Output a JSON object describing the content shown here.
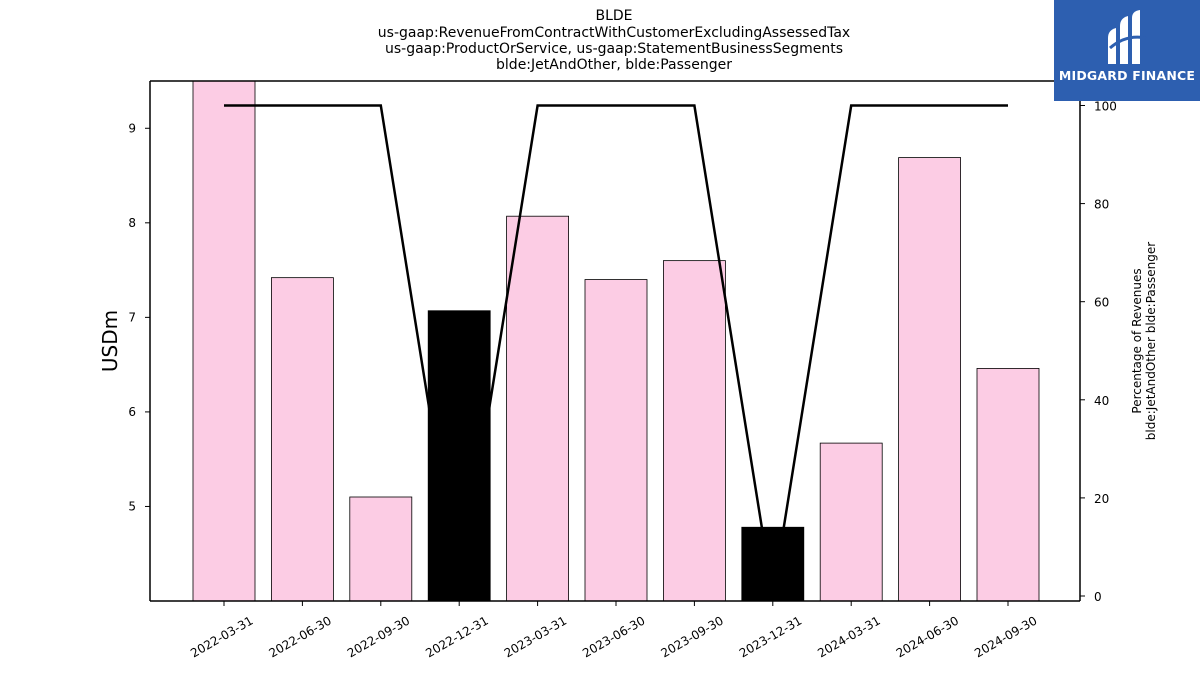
{
  "chart_data": {
    "type": "bar",
    "title_lines": [
      "BLDE",
      "us-gaap:RevenueFromContractWithCustomerExcludingAssessedTax",
      "us-gaap:ProductOrService, us-gaap:StatementBusinessSegments",
      "blde:JetAndOther, blde:Passenger"
    ],
    "categories": [
      "2022-03-31",
      "2022-06-30",
      "2022-09-30",
      "2022-12-31",
      "2023-03-31",
      "2023-06-30",
      "2023-09-30",
      "2023-12-31",
      "2024-03-31",
      "2024-06-30",
      "2024-09-30"
    ],
    "series": [
      {
        "values": [
          9.5,
          7.42,
          5.1,
          7.07,
          8.07,
          7.4,
          7.6,
          4.78,
          5.67,
          8.69,
          6.46
        ],
        "bar_colors": [
          "#fccce4",
          "#fccce4",
          "#fccce4",
          "#000000",
          "#fccce4",
          "#fccce4",
          "#fccce4",
          "#000000",
          "#fccce4",
          "#fccce4",
          "#fccce4"
        ]
      },
      {
        "type": "line",
        "axis": "right",
        "color": "#000000",
        "values": [
          100,
          100,
          100,
          0,
          100,
          100,
          100,
          0,
          100,
          100,
          100
        ]
      }
    ],
    "ylabel": "USDm",
    "ylabel_right_lines": [
      "Percentage of Revenues",
      "blde:JetAndOther blde:Passenger"
    ],
    "ylim": [
      4.0,
      9.5
    ],
    "yticks": [
      5,
      6,
      7,
      8,
      9
    ],
    "y2lim": [
      0,
      100.1
    ],
    "y2ticks": [
      0,
      20,
      40,
      60,
      80,
      100
    ],
    "grid": false
  },
  "logo": {
    "text": "MIDGARD FINANCE",
    "background": "#2d5fb0"
  }
}
